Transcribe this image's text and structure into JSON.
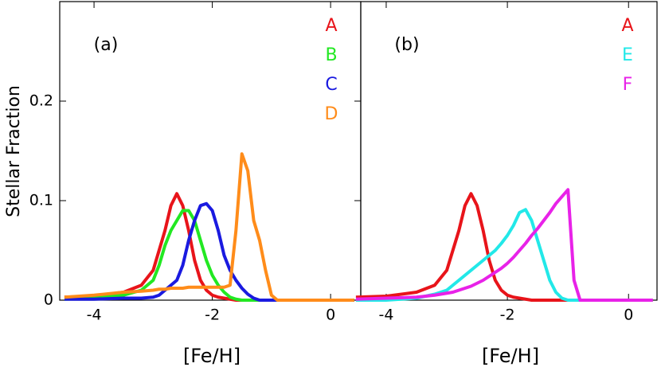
{
  "chart_data": [
    {
      "type": "line",
      "annotation": "(a)",
      "xlabel": "[Fe/H]",
      "ylabel": "Stellar Fraction",
      "xlim": [
        -4.58,
        0.51
      ],
      "ylim": [
        0,
        0.3
      ],
      "xticks": [
        -4,
        -2,
        0
      ],
      "yticks": [
        0,
        0.1,
        0.2
      ],
      "x": [
        -4.5,
        -4,
        -3.5,
        -3.2,
        -3.0,
        -2.9,
        -2.8,
        -2.7,
        -2.6,
        -2.5,
        -2.4,
        -2.3,
        -2.2,
        -2.1,
        -2.0,
        -1.9,
        -1.8,
        -1.7,
        -1.6,
        -1.5,
        -1.4,
        -1.3,
        -1.2,
        -1.1,
        -1.0,
        -0.9,
        -0.8,
        -0.5,
        0,
        0.4
      ],
      "series": [
        {
          "name": "A",
          "color": "#e8141a",
          "values": [
            0.003,
            0.004,
            0.008,
            0.015,
            0.03,
            0.05,
            0.07,
            0.095,
            0.107,
            0.095,
            0.07,
            0.04,
            0.02,
            0.01,
            0.005,
            0.003,
            0.002,
            0.001,
            0,
            0,
            0,
            0,
            0,
            0,
            0,
            0,
            0,
            0,
            0,
            0
          ]
        },
        {
          "name": "B",
          "color": "#22e822",
          "values": [
            0.001,
            0.002,
            0.005,
            0.01,
            0.02,
            0.035,
            0.055,
            0.07,
            0.08,
            0.09,
            0.09,
            0.08,
            0.06,
            0.04,
            0.025,
            0.015,
            0.008,
            0.003,
            0.001,
            0,
            0,
            0,
            0,
            0,
            0,
            0,
            0,
            0,
            0,
            0
          ]
        },
        {
          "name": "C",
          "color": "#1a1ae0",
          "values": [
            0.001,
            0.001,
            0.002,
            0.002,
            0.003,
            0.005,
            0.01,
            0.015,
            0.02,
            0.035,
            0.06,
            0.08,
            0.095,
            0.097,
            0.09,
            0.07,
            0.045,
            0.03,
            0.02,
            0.012,
            0.006,
            0.002,
            0,
            0,
            0,
            0,
            0,
            0,
            0,
            0
          ]
        },
        {
          "name": "D",
          "color": "#ff8c1a",
          "values": [
            0.003,
            0.005,
            0.008,
            0.009,
            0.01,
            0.011,
            0.011,
            0.012,
            0.012,
            0.012,
            0.013,
            0.013,
            0.013,
            0.013,
            0.013,
            0.013,
            0.013,
            0.015,
            0.07,
            0.147,
            0.13,
            0.08,
            0.06,
            0.03,
            0.005,
            0,
            0,
            0,
            0,
            0
          ]
        }
      ]
    },
    {
      "type": "line",
      "annotation": "(b)",
      "xlabel": "[Fe/H]",
      "xlim": [
        -4.42,
        0.47
      ],
      "ylim": [
        0,
        0.3
      ],
      "xticks": [
        -4,
        -2,
        0
      ],
      "x": [
        -4.5,
        -4,
        -3.5,
        -3.2,
        -3.0,
        -2.9,
        -2.8,
        -2.7,
        -2.6,
        -2.5,
        -2.4,
        -2.3,
        -2.2,
        -2.1,
        -2.0,
        -1.9,
        -1.8,
        -1.7,
        -1.6,
        -1.5,
        -1.4,
        -1.3,
        -1.2,
        -1.1,
        -1.0,
        -0.9,
        -0.8,
        -0.5,
        0,
        0.4
      ],
      "series": [
        {
          "name": "A",
          "color": "#e8141a",
          "values": [
            0.003,
            0.004,
            0.008,
            0.015,
            0.03,
            0.05,
            0.07,
            0.095,
            0.107,
            0.095,
            0.07,
            0.04,
            0.02,
            0.01,
            0.005,
            0.003,
            0.002,
            0.001,
            0,
            0,
            0,
            0,
            0,
            0,
            0,
            0,
            0,
            0,
            0,
            0
          ]
        },
        {
          "name": "E",
          "color": "#22e8e8",
          "values": [
            0,
            0,
            0.002,
            0.006,
            0.01,
            0.015,
            0.02,
            0.025,
            0.03,
            0.035,
            0.04,
            0.045,
            0.05,
            0.057,
            0.065,
            0.075,
            0.088,
            0.091,
            0.08,
            0.06,
            0.04,
            0.02,
            0.008,
            0.002,
            0,
            0,
            0,
            0,
            0,
            0
          ]
        },
        {
          "name": "F",
          "color": "#e822e8",
          "values": [
            0.001,
            0.002,
            0.003,
            0.005,
            0.007,
            0.008,
            0.01,
            0.012,
            0.014,
            0.017,
            0.02,
            0.024,
            0.028,
            0.032,
            0.037,
            0.043,
            0.05,
            0.057,
            0.065,
            0.072,
            0.08,
            0.088,
            0.097,
            0.104,
            0.111,
            0.02,
            0,
            0,
            0,
            0
          ]
        }
      ]
    }
  ]
}
